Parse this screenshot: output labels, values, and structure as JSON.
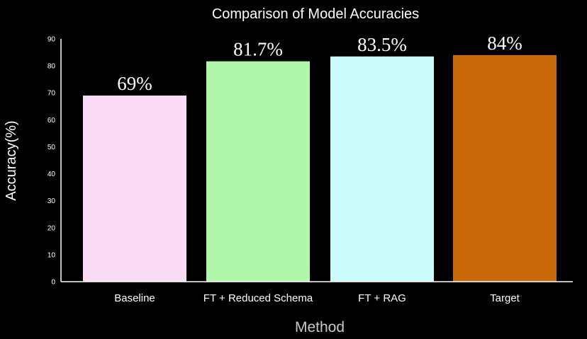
{
  "chart_data": {
    "type": "bar",
    "title": "Comparison of Model Accuracies",
    "xlabel": "Method",
    "ylabel": "Accuracy(%)",
    "categories": [
      "Baseline",
      "FT + Reduced Schema",
      "FT + RAG",
      "Target"
    ],
    "values": [
      69,
      81.7,
      83.5,
      84
    ],
    "data_labels": [
      "69%",
      "81.7%",
      "83.5%",
      "84%"
    ],
    "colors": [
      "#fadcf7",
      "#b0f7ab",
      "#ccfbfb",
      "#c8690a"
    ],
    "ylim": [
      0,
      90
    ],
    "yticks": [
      0,
      10,
      20,
      30,
      40,
      50,
      60,
      70,
      80,
      90
    ],
    "grid": false,
    "background": "#000000"
  }
}
